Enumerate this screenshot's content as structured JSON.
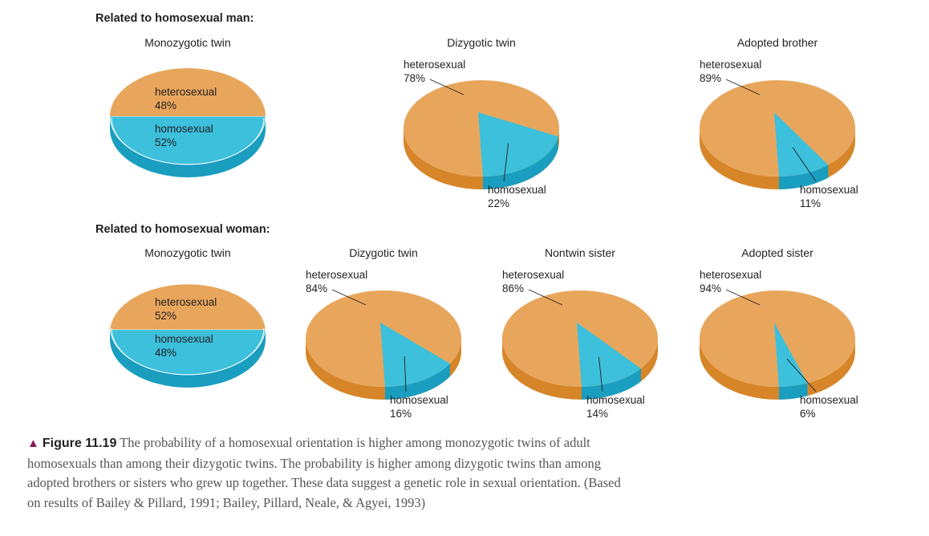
{
  "sections": {
    "man_title": "Related to homosexual man:",
    "woman_title": "Related to homosexual woman:"
  },
  "colors": {
    "heterosexual_top": "#e8a65c",
    "heterosexual_side": "#d68528",
    "homosexual_top": "#3cc0dc",
    "homosexual_side": "#1a9ec0"
  },
  "chart_data": [
    {
      "type": "pie",
      "group": "Related to homosexual man:",
      "title": "Monozygotic twin",
      "slices": [
        {
          "label": "heterosexual",
          "value": 48,
          "text": "48%"
        },
        {
          "label": "homosexual",
          "value": 52,
          "text": "52%"
        }
      ]
    },
    {
      "type": "pie",
      "group": "Related to homosexual man:",
      "title": "Dizygotic twin",
      "slices": [
        {
          "label": "heterosexual",
          "value": 78,
          "text": "78%"
        },
        {
          "label": "homosexual",
          "value": 22,
          "text": "22%"
        }
      ]
    },
    {
      "type": "pie",
      "group": "Related to homosexual man:",
      "title": "Adopted brother",
      "slices": [
        {
          "label": "heterosexual",
          "value": 89,
          "text": "89%"
        },
        {
          "label": "homosexual",
          "value": 11,
          "text": "11%"
        }
      ]
    },
    {
      "type": "pie",
      "group": "Related to homosexual woman:",
      "title": "Monozygotic twin",
      "slices": [
        {
          "label": "heterosexual",
          "value": 52,
          "text": "52%"
        },
        {
          "label": "homosexual",
          "value": 48,
          "text": "48%"
        }
      ]
    },
    {
      "type": "pie",
      "group": "Related to homosexual woman:",
      "title": "Dizygotic twin",
      "slices": [
        {
          "label": "heterosexual",
          "value": 84,
          "text": "84%"
        },
        {
          "label": "homosexual",
          "value": 16,
          "text": "16%"
        }
      ]
    },
    {
      "type": "pie",
      "group": "Related to homosexual woman:",
      "title": "Nontwin sister",
      "slices": [
        {
          "label": "heterosexual",
          "value": 86,
          "text": "86%"
        },
        {
          "label": "homosexual",
          "value": 14,
          "text": "14%"
        }
      ]
    },
    {
      "type": "pie",
      "group": "Related to homosexual woman:",
      "title": "Adopted sister",
      "slices": [
        {
          "label": "heterosexual",
          "value": 94,
          "text": "94%"
        },
        {
          "label": "homosexual",
          "value": 6,
          "text": "6%"
        }
      ]
    }
  ],
  "caption": {
    "figure_label": "Figure 11.19",
    "text": "The probability of a homosexual orientation is higher among monozygotic twins of adult homosexuals than among their dizygotic twins. The probability is higher among dizygotic twins than among adopted brothers or sisters who grew up together. These data suggest a genetic role in sexual orientation. (Based on results of Bailey & Pillard, 1991; Bailey, Pillard, Neale, & Agyei, 1993)"
  }
}
